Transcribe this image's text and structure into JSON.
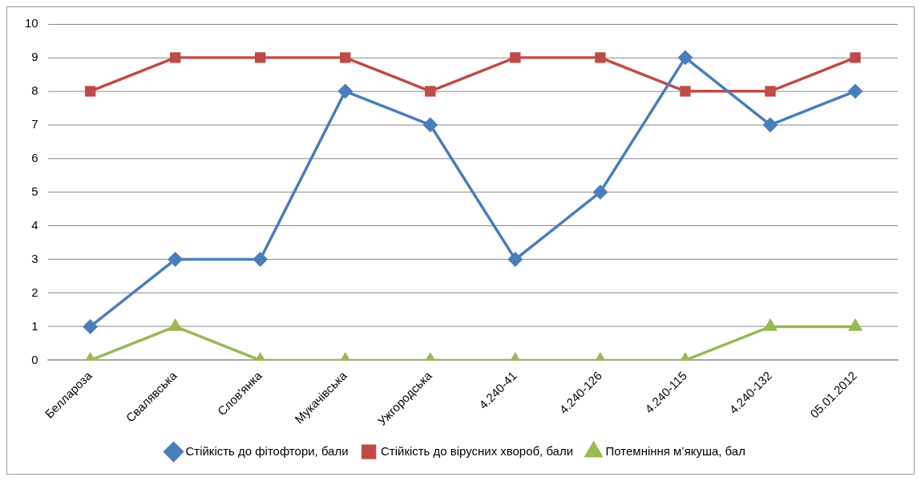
{
  "chart_data": {
    "type": "line",
    "categories": [
      "Беллароза",
      "Свалявська",
      "Слов'янка",
      "Мукачівська",
      "Ужгородська",
      "4.240-41",
      "4.240-126",
      "4.240-115",
      "4.240-132",
      "05.01.2012"
    ],
    "series": [
      {
        "name": "Стійкість до фітофтори, бали",
        "color": "#4a7ebb",
        "marker": "diamond",
        "values": [
          1,
          3,
          3,
          8,
          7,
          3,
          5,
          9,
          7,
          8
        ]
      },
      {
        "name": "Стійкість до вірусних хвороб, бали",
        "color": "#be4b48",
        "marker": "square",
        "values": [
          8,
          9,
          9,
          9,
          8,
          9,
          9,
          8,
          8,
          9
        ]
      },
      {
        "name": "Потемніння м’якуша, бал",
        "color": "#98b954",
        "marker": "triangle",
        "values": [
          0,
          1,
          0,
          0,
          0,
          0,
          0,
          0,
          1,
          1
        ]
      }
    ],
    "ylim": [
      0,
      10
    ],
    "yticks": [
      0,
      1,
      2,
      3,
      4,
      5,
      6,
      7,
      8,
      9,
      10
    ],
    "grid": "y",
    "legend": "bottom",
    "line_style": "solid"
  }
}
